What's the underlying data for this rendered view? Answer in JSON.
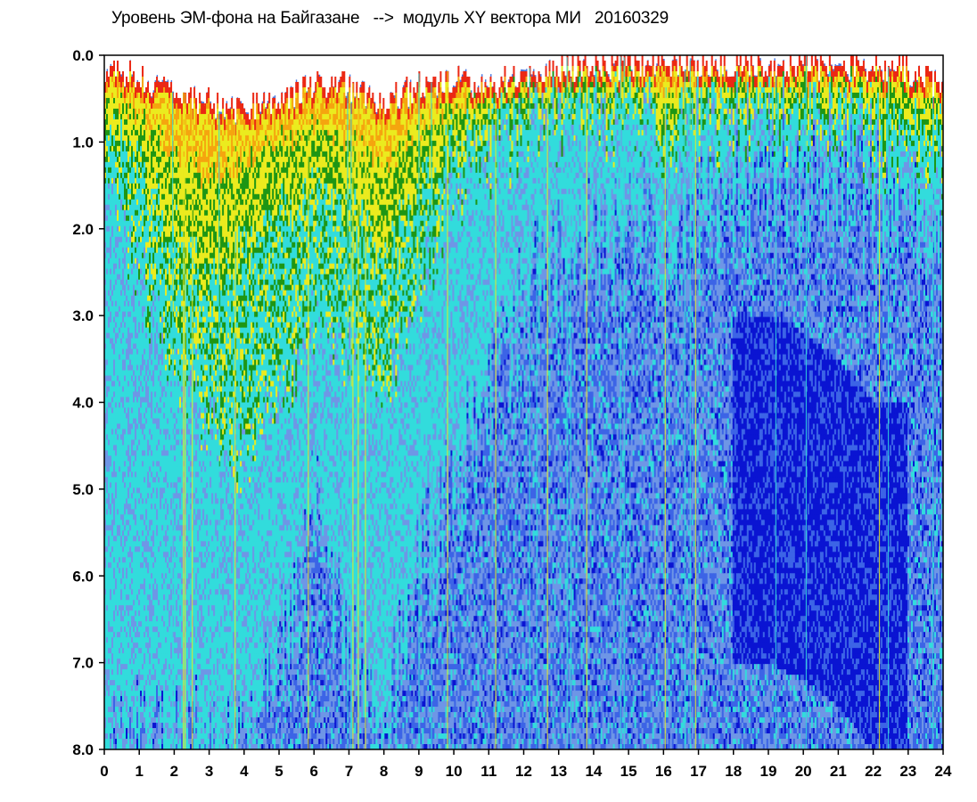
{
  "chart_data": {
    "type": "heatmap",
    "title": "Уровень ЭМ-фона на Байгазане   -->  модуль XY вектора МИ   20160329",
    "xlabel": "",
    "ylabel": "",
    "xlim": [
      0,
      24
    ],
    "ylim": [
      0,
      8
    ],
    "y_axis_inverted": true,
    "x_ticks": [
      "0",
      "1",
      "2",
      "3",
      "4",
      "5",
      "6",
      "7",
      "8",
      "9",
      "10",
      "11",
      "12",
      "13",
      "14",
      "15",
      "16",
      "17",
      "18",
      "19",
      "20",
      "21",
      "22",
      "23",
      "24"
    ],
    "y_ticks": [
      "0.0",
      "1.0",
      "2.0",
      "3.0",
      "4.0",
      "5.0",
      "6.0",
      "7.0",
      "8.0"
    ],
    "colorscale": [
      "#0a14d2",
      "#3c64e6",
      "#6e96e6",
      "#32dcdc",
      "#1e9614",
      "#ebeb1e",
      "#f5a50f",
      "#eb2814",
      "#ffffff"
    ],
    "background_level_profile": {
      "hours": [
        0,
        1,
        2,
        3,
        4,
        5,
        6,
        7,
        8,
        9,
        10,
        11,
        12,
        13,
        14,
        15,
        16,
        17,
        18,
        19,
        20,
        21,
        22,
        23,
        24
      ],
      "top_edge": [
        0.1,
        0.15,
        0.4,
        0.5,
        0.55,
        0.5,
        0.25,
        0.3,
        0.5,
        0.3,
        0.2,
        0.3,
        0.15,
        0.1,
        0.05,
        0.05,
        0.05,
        0.05,
        0.05,
        0.05,
        0.05,
        0.05,
        0.05,
        0.1,
        0.3
      ],
      "yellow_zone_depth": [
        0.8,
        1.3,
        2.0,
        2.6,
        2.2,
        1.8,
        1.5,
        1.8,
        2.3,
        1.6,
        1.0,
        0.8,
        0.6,
        0.5,
        0.5,
        0.5,
        0.6,
        0.6,
        0.5,
        0.5,
        0.5,
        0.5,
        0.6,
        0.8,
        0.9
      ],
      "green_zone_depth": [
        1.2,
        2.5,
        3.5,
        4.2,
        4.6,
        4.0,
        3.0,
        3.5,
        4.0,
        2.8,
        1.5,
        1.2,
        0.9,
        0.8,
        0.8,
        0.8,
        0.9,
        0.9,
        0.8,
        0.8,
        0.8,
        0.8,
        1.0,
        1.2,
        1.5
      ],
      "cyan_zone_depth": [
        8.0,
        8.0,
        8.0,
        8.0,
        8.0,
        7.0,
        5.0,
        7.0,
        8.0,
        6.0,
        5.0,
        4.0,
        2.8,
        2.5,
        2.2,
        2.0,
        2.0,
        2.0,
        1.6,
        1.4,
        1.4,
        1.4,
        1.6,
        2.0,
        2.4
      ],
      "deep_blue_center": [
        null,
        null,
        null,
        null,
        null,
        null,
        null,
        null,
        null,
        null,
        null,
        null,
        null,
        null,
        null,
        null,
        null,
        null,
        null,
        5.0,
        5.2,
        5.5,
        6.0,
        null,
        null
      ]
    },
    "grid": false,
    "legend": "none"
  }
}
